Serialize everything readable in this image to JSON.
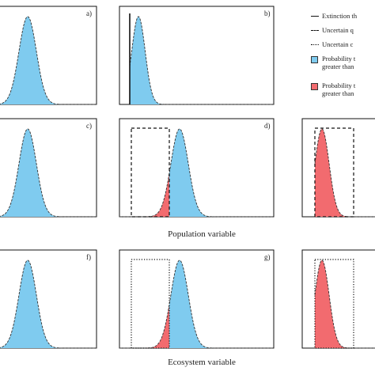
{
  "panels": {
    "a": "a)",
    "b": "b)",
    "c": "c)",
    "d": "d)",
    "f": "f)",
    "g": "g)"
  },
  "captions": {
    "population": "Population variable",
    "ecosystem": "Ecosystem variable"
  },
  "legend": {
    "extinction": "Extinction th",
    "uncertain_q": "Uncertain q",
    "uncertain_c": "Uncertain c",
    "prob_blue_1": "Probability t",
    "prob_blue_2": "greater than",
    "prob_red_1": "Probability t",
    "prob_red_2": "greater than"
  },
  "colors": {
    "blue": "#7fcbef",
    "red": "#f26b6f",
    "stroke": "#333333"
  }
}
